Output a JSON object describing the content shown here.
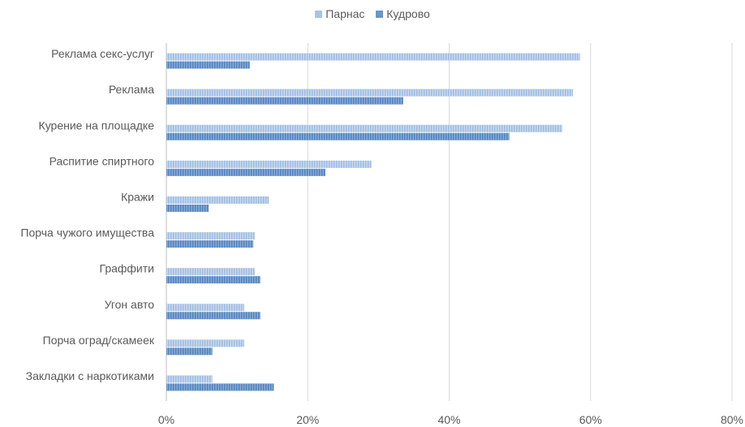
{
  "chart_data": {
    "type": "bar",
    "orientation": "horizontal",
    "title": "",
    "xlabel": "",
    "ylabel": "",
    "categories": [
      "Реклама секс-услуг",
      "Реклама",
      "Курение на площадке",
      "Распитие спиртного",
      "Кражи",
      "Порча чужого имущества",
      "Граффити",
      "Угон авто",
      "Порча оград/скамеек",
      "Закладки с наркотиками"
    ],
    "series": [
      {
        "name": "Парнас",
        "color": "#a9c4e4",
        "values": [
          58.5,
          57.5,
          56,
          29,
          14.5,
          12.5,
          12.5,
          11,
          11,
          6.5
        ]
      },
      {
        "name": "Кудрово",
        "color": "#6a95c8",
        "values": [
          11.8,
          33.5,
          48.5,
          22.5,
          6,
          12.3,
          13.3,
          13.3,
          6.5,
          15.2
        ]
      }
    ],
    "xlim": [
      0,
      80
    ],
    "xticks": [
      0,
      20,
      40,
      60,
      80
    ],
    "tick_format": "percent",
    "grid": true,
    "legend_position": "top"
  }
}
